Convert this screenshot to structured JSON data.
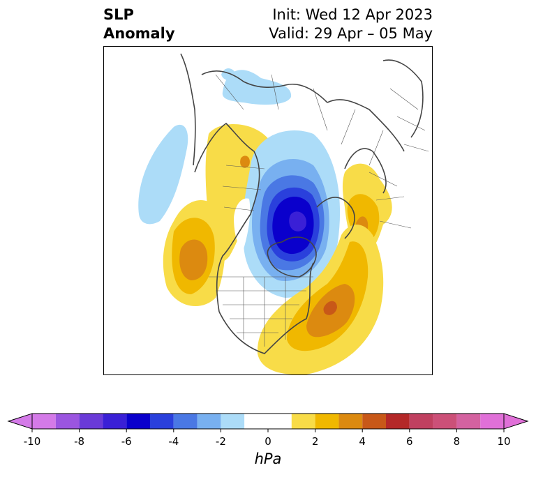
{
  "title": {
    "left_line1": "SLP",
    "left_line2": "Anomaly",
    "init": "Init: Wed 12 Apr 2023",
    "valid": "Valid: 29 Apr – 05 May"
  },
  "colorbar": {
    "units": "hPa",
    "min": -10,
    "max": 10,
    "tick_labels": [
      "-10",
      "-8",
      "-6",
      "-4",
      "-2",
      "0",
      "2",
      "4",
      "6",
      "8",
      "10"
    ],
    "levels": [
      -10,
      -9,
      -8,
      -7,
      -6,
      -5,
      -4,
      -3,
      -2,
      -1,
      1,
      2,
      3,
      4,
      5,
      6,
      7,
      8,
      9,
      10
    ],
    "colors": [
      "#d47ae8",
      "#9b55e0",
      "#6a3ad8",
      "#3a20d6",
      "#0a00cc",
      "#2a40dc",
      "#4a78e4",
      "#78b0f0",
      "#acdcf8",
      "#ffffff",
      "#f8dc48",
      "#f0b800",
      "#dc8a10",
      "#c85818",
      "#b42828",
      "#c04060",
      "#cc5078",
      "#d462a0",
      "#e070d8"
    ],
    "extend": "both"
  },
  "map": {
    "projection": "north-polar-stereographic",
    "field": "sea-level-pressure-anomaly"
  }
}
